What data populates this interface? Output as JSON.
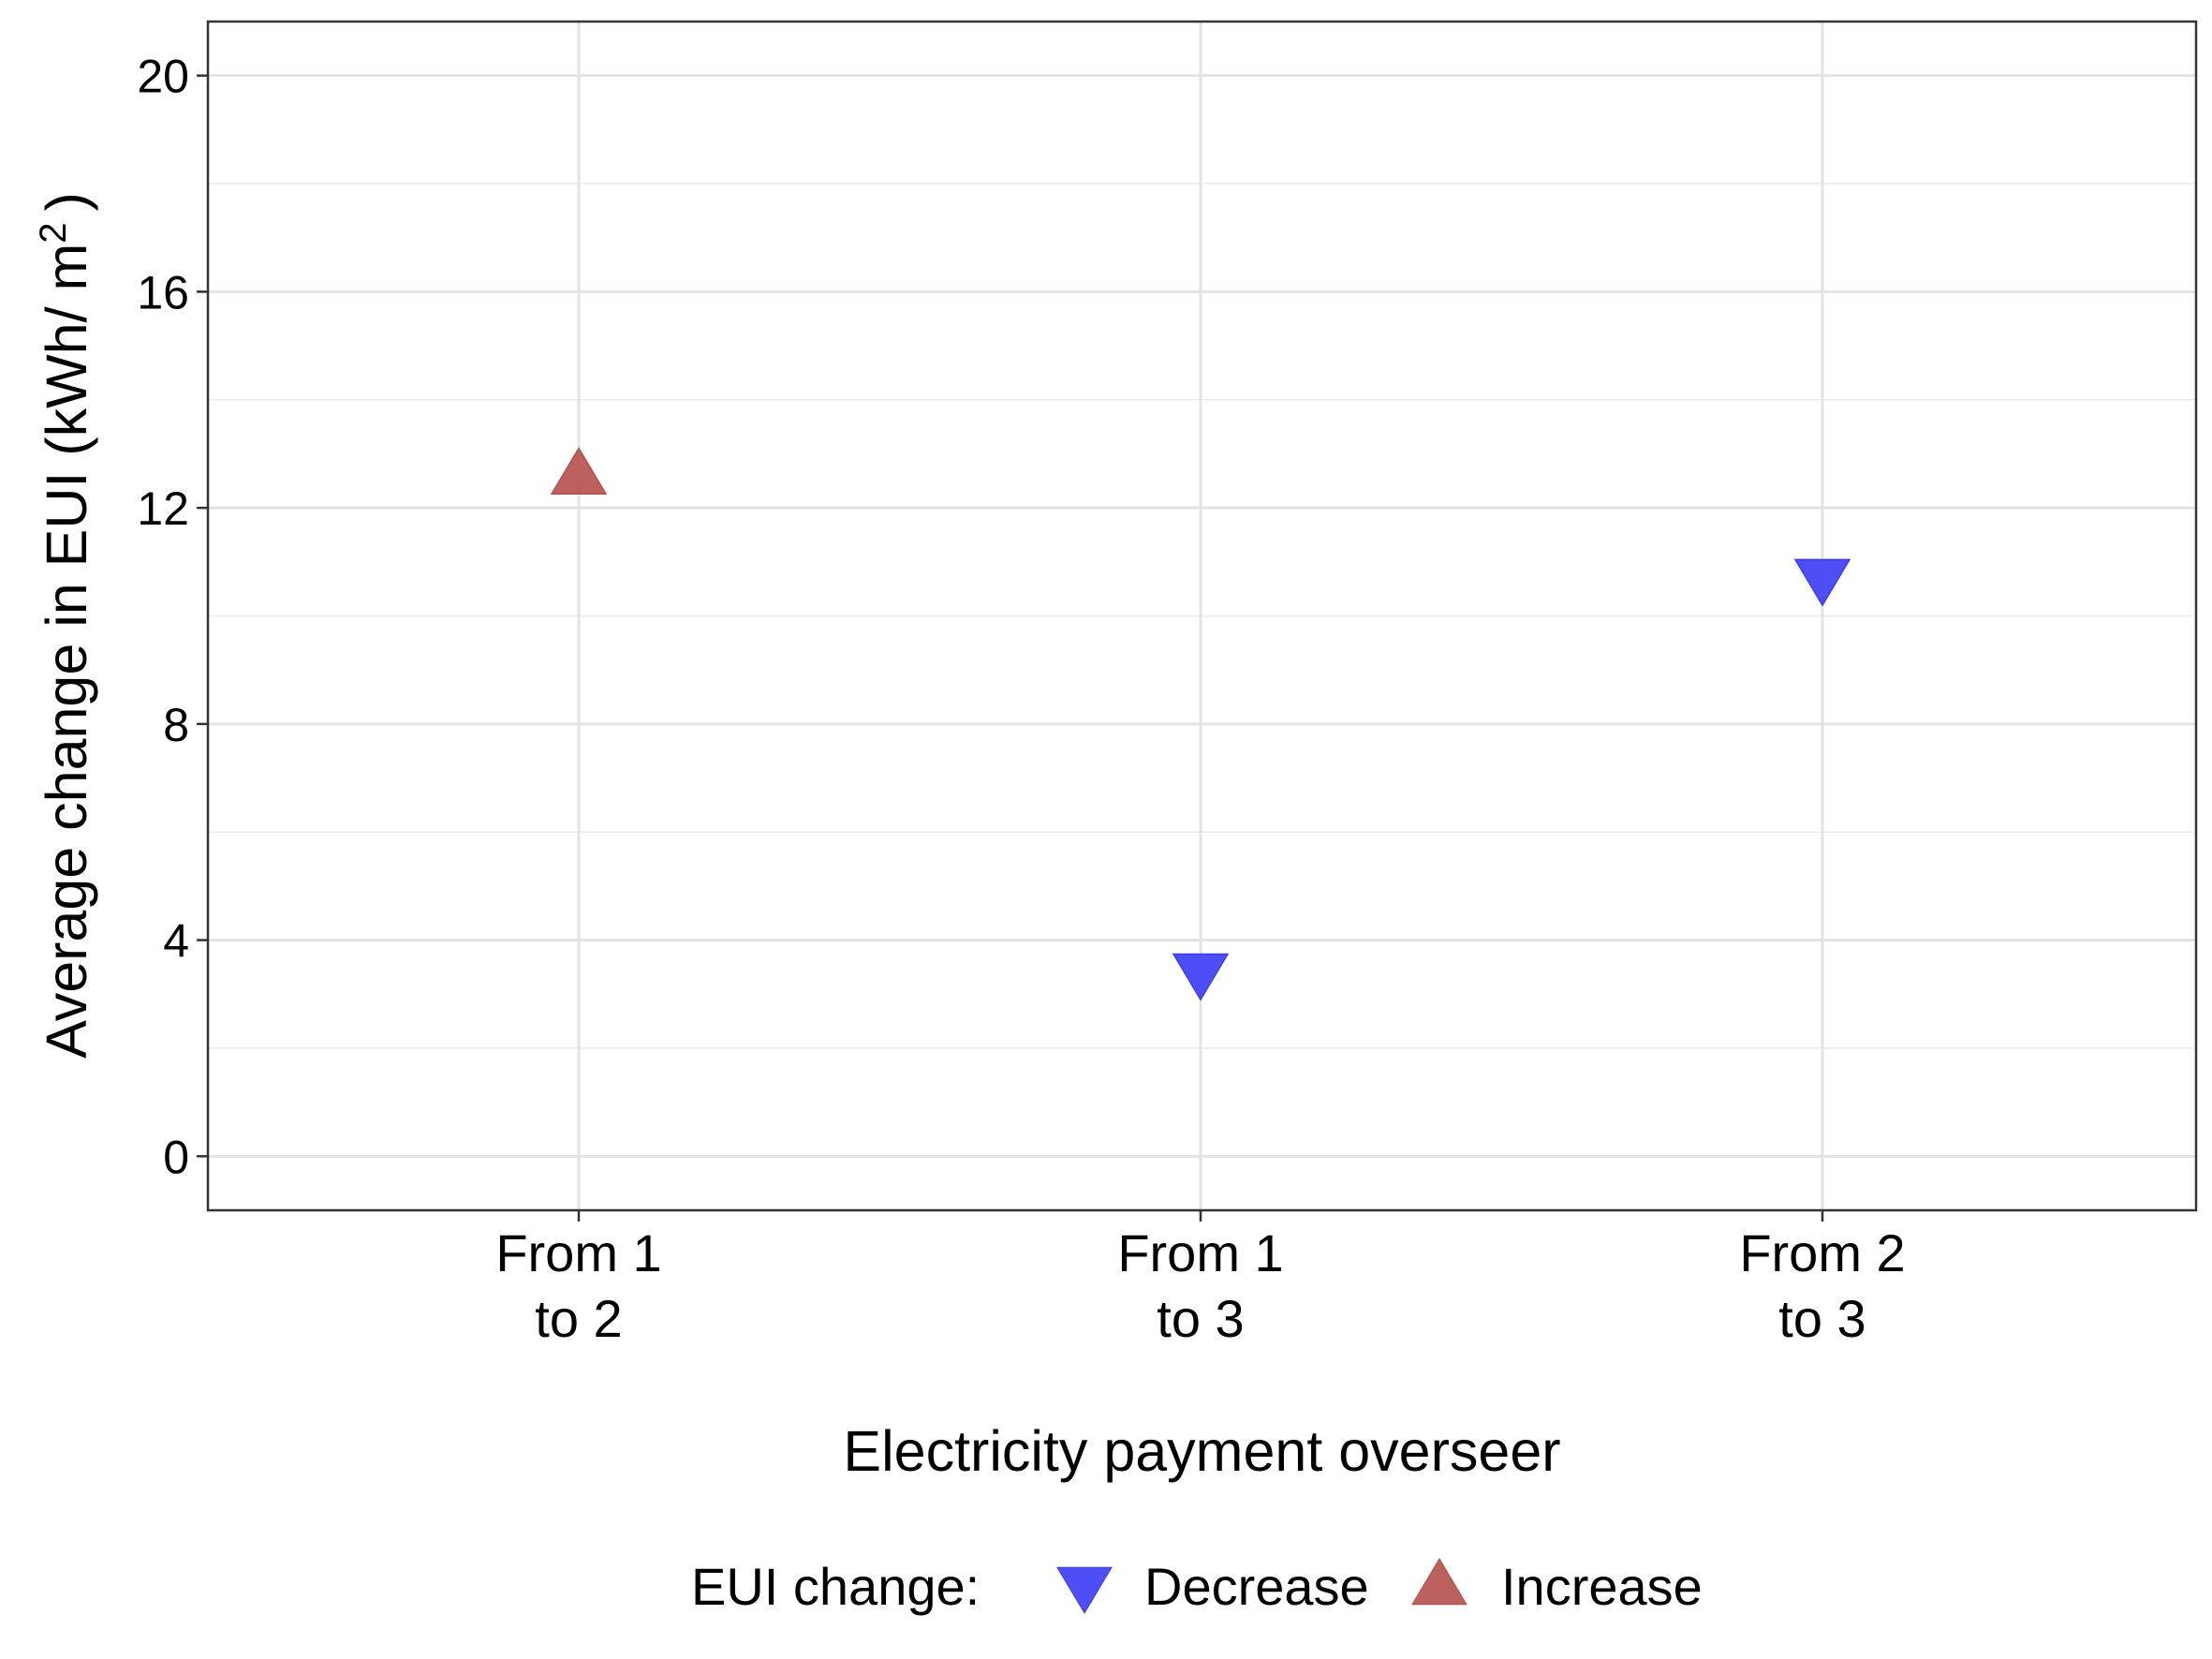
{
  "chart_data": {
    "type": "scatter",
    "xlabel": "Electricity payment overseer",
    "ylabel_main": "Average change in EUI (kWh/ m",
    "ylabel_sup": "2",
    "ylabel_close": ")",
    "categories": [
      [
        "From 1",
        "to 2"
      ],
      [
        "From 1",
        "to 3"
      ],
      [
        "From 2",
        "to 3"
      ]
    ],
    "ylim": [
      -1,
      21
    ],
    "yticks": [
      0,
      4,
      8,
      12,
      16,
      20
    ],
    "yticks_minor": [
      2,
      6,
      10,
      14,
      18
    ],
    "ytick_labels": [
      "0",
      "4",
      "8",
      "12",
      "16",
      "20"
    ],
    "grid": true,
    "points": [
      {
        "category_index": 0,
        "value": 12.6,
        "group": "Increase"
      },
      {
        "category_index": 1,
        "value": 3.4,
        "group": "Decrease"
      },
      {
        "category_index": 2,
        "value": 10.7,
        "group": "Decrease"
      }
    ],
    "legend": {
      "title": "EUI change:",
      "position": "bottom",
      "entries": [
        {
          "label": "Decrease",
          "shape": "triangle-down",
          "color": "#3b3bf5"
        },
        {
          "label": "Increase",
          "shape": "triangle-up",
          "color": "#b5504d"
        }
      ]
    }
  }
}
